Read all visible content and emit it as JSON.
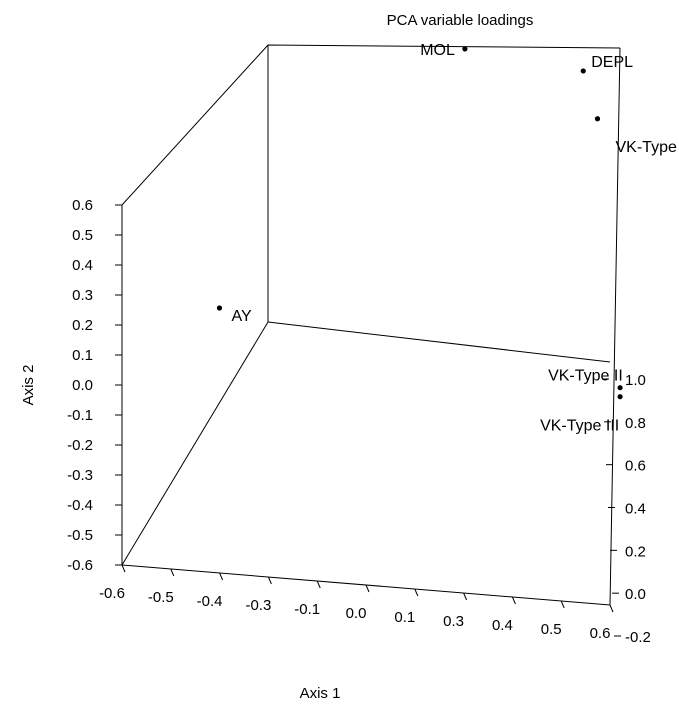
{
  "chart_data": {
    "type": "scatter",
    "title": "PCA variable loadings",
    "xlabel": "Axis 1",
    "ylabel": "Axis 2",
    "zlabel": "",
    "x_ticks": [
      "-0.6",
      "-0.5",
      "-0.4",
      "-0.3",
      "-0.1",
      "0.0",
      "0.1",
      "0.3",
      "0.4",
      "0.5",
      "0.6"
    ],
    "y_ticks": [
      "-0.6",
      "-0.5",
      "-0.4",
      "-0.3",
      "-0.2",
      "-0.1",
      "0.0",
      "0.1",
      "0.2",
      "0.3",
      "0.4",
      "0.5",
      "0.6"
    ],
    "z_ticks": [
      "-0.2",
      "0.0",
      "0.2",
      "0.4",
      "0.6",
      "0.8",
      "1.0"
    ],
    "xlim": [
      -0.6,
      0.6
    ],
    "ylim": [
      -0.6,
      0.6
    ],
    "zlim": [
      -0.2,
      1.0
    ],
    "grid": false,
    "points": [
      {
        "label": "MOL",
        "x": -0.05,
        "y": 0.52,
        "z": 0.78
      },
      {
        "label": "DEPL",
        "x": 0.25,
        "y": 0.5,
        "z": 0.75
      },
      {
        "label": "VK-Type I",
        "x": 0.3,
        "y": 0.38,
        "z": 0.7
      },
      {
        "label": "AY",
        "x": -0.48,
        "y": 0.0,
        "z": 0.2
      },
      {
        "label": "VK-Type II",
        "x": 0.55,
        "y": -0.05,
        "z": 0.05
      },
      {
        "label": "VK-Type III",
        "x": 0.55,
        "y": -0.08,
        "z": 0.05
      }
    ]
  }
}
